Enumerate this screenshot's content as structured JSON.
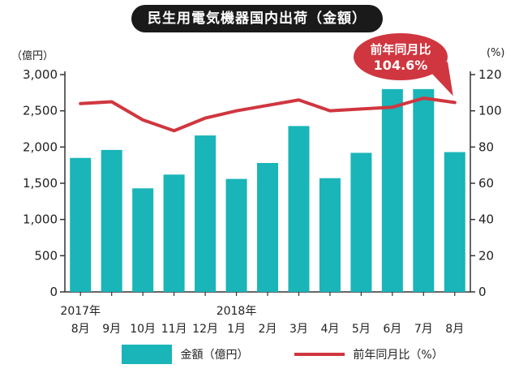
{
  "chart_data": {
    "type": "bar",
    "title": "民生用電気機器国内出荷（金額）",
    "y_left_unit": "（億円）",
    "y_right_unit": "(%)",
    "y_left_ticks": [
      "3,000",
      "2,500",
      "2,000",
      "1,500",
      "1,000",
      "500",
      "0"
    ],
    "y_right_ticks": [
      "120",
      "100",
      "80",
      "60",
      "40",
      "20",
      "0"
    ],
    "ylim": [
      0,
      3000
    ],
    "y2lim": [
      0,
      120
    ],
    "categories": [
      "8月",
      "9月",
      "10月",
      "11月",
      "12月",
      "1月",
      "2月",
      "3月",
      "4月",
      "5月",
      "6月",
      "7月",
      "8月"
    ],
    "year_labels": [
      {
        "index": 0,
        "label": "2017年"
      },
      {
        "index": 5,
        "label": "2018年"
      }
    ],
    "series": [
      {
        "name": "金額（億円）",
        "type": "bar",
        "axis": "left",
        "color": "#19b5b8",
        "values": [
          1850,
          1960,
          1430,
          1620,
          2160,
          1560,
          1780,
          2290,
          1570,
          1920,
          2800,
          2800,
          1930
        ]
      },
      {
        "name": "前年同月比（%）",
        "type": "line",
        "axis": "right",
        "color": "#d0363f",
        "values": [
          104,
          105,
          95,
          89,
          96,
          100,
          103,
          106,
          100,
          101,
          102,
          107,
          104.6
        ]
      }
    ],
    "callout": {
      "label": "前年同月比",
      "value": "104.6%",
      "color": "#d0363f"
    },
    "grid": false,
    "legend_position": "bottom"
  }
}
